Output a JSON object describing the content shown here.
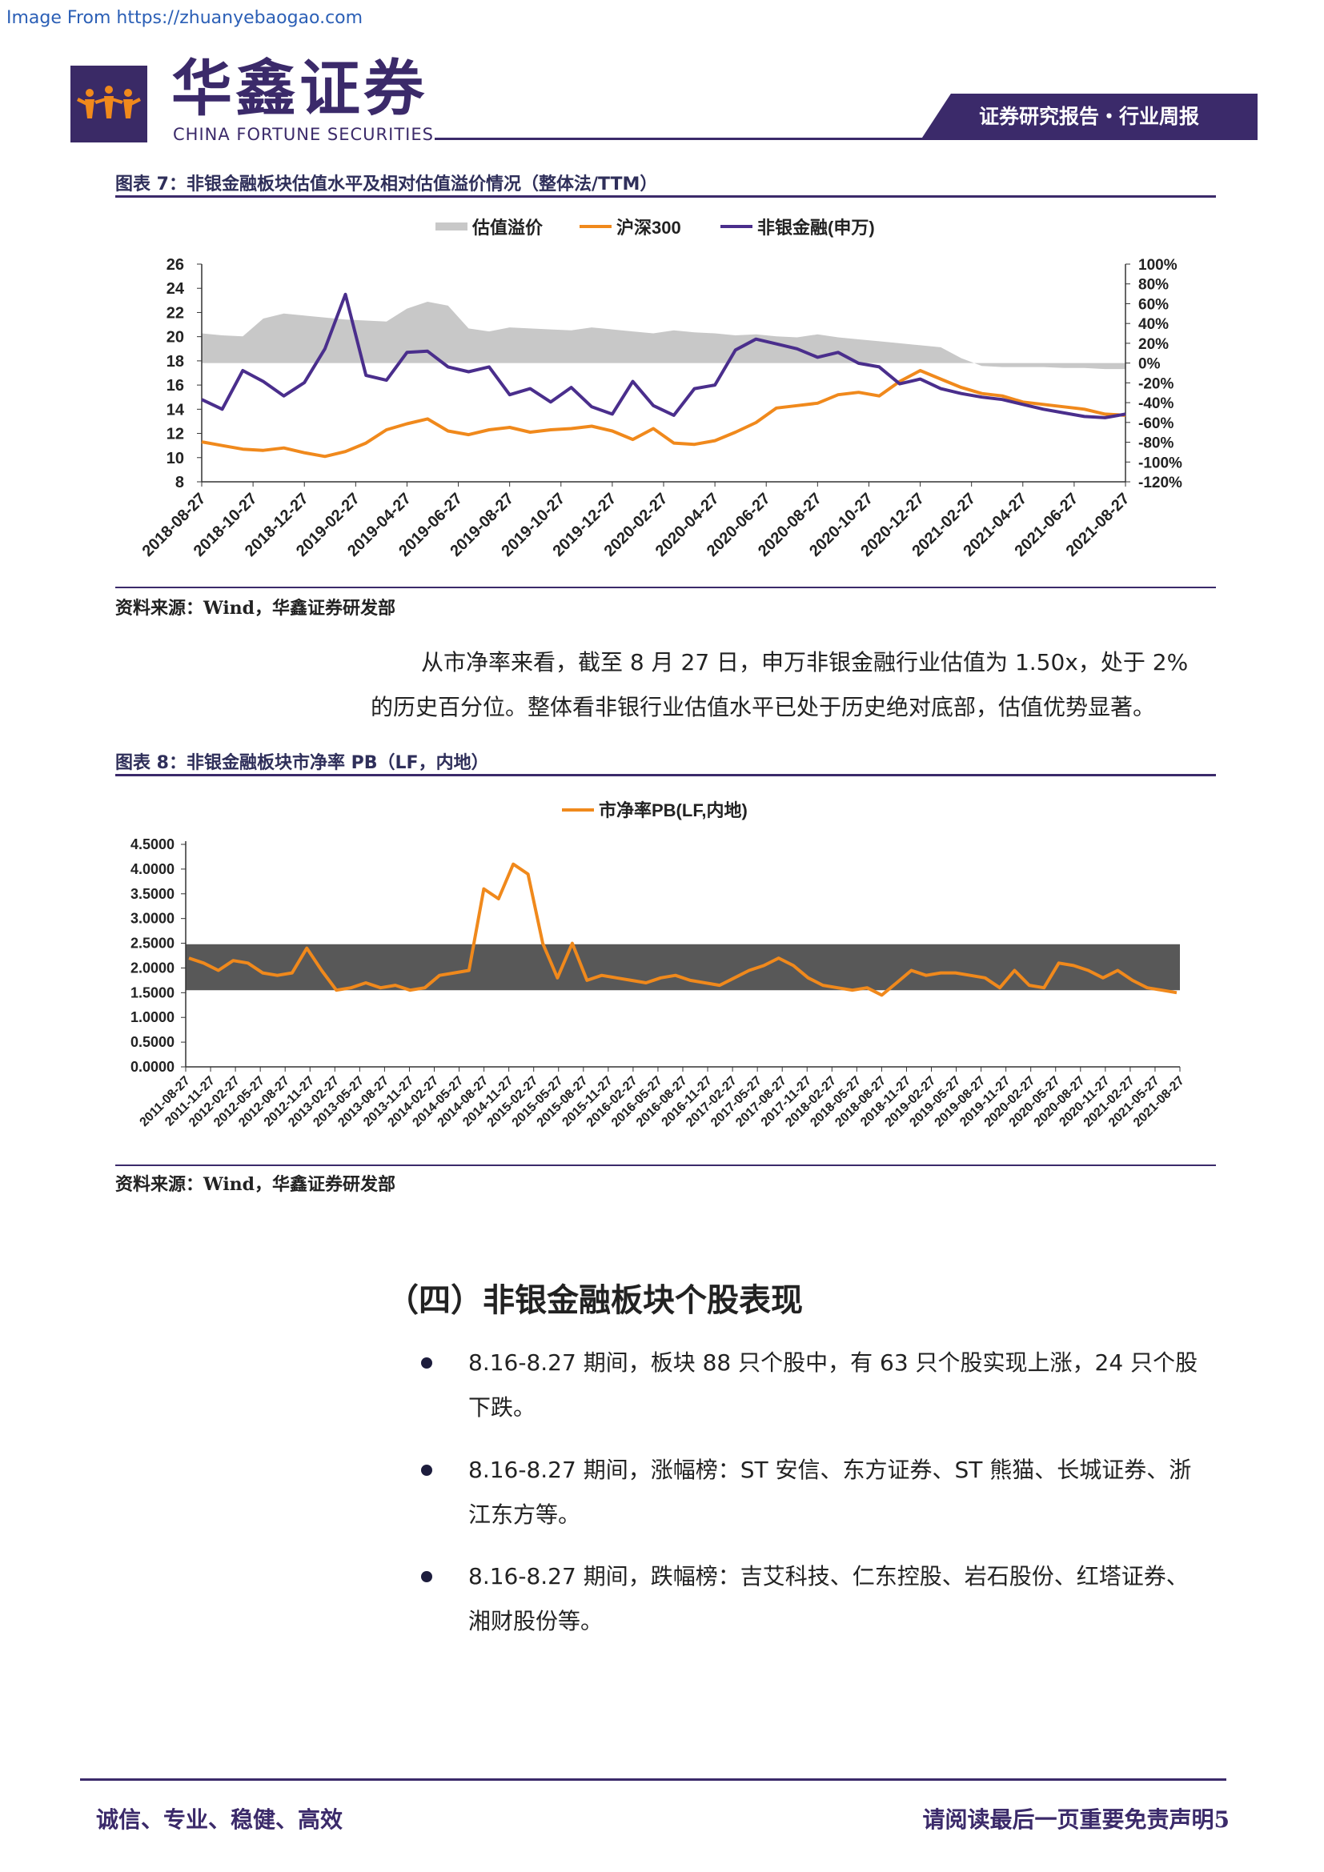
{
  "watermark": "Image From https://zhuanyebaogao.com",
  "header": {
    "logo_cn": "华鑫证券",
    "logo_en": "CHINA FORTUNE SECURITIES",
    "tag": "证券研究报告・行业周报"
  },
  "figure7": {
    "title": "图表 7：非银金融板块估值水平及相对估值溢价情况（整体法/TTM）",
    "source": "资料来源：Wind，华鑫证券研发部"
  },
  "paragraph1": {
    "line1": "从市净率来看，截至 8 月 27 日，申万非银金融行业估值为 1.50x，处于 2%",
    "line2": "的历史百分位。整体看非银行业估值水平已处于历史绝对底部，估值优势显著。"
  },
  "figure8": {
    "title": "图表 8：非银金融板块市净率 PB（LF，内地）",
    "source": "资料来源：Wind，华鑫证券研发部"
  },
  "section": {
    "heading": "（四）非银金融板块个股表现",
    "bullets": [
      {
        "line1": "8.16-8.27 期间，板块 88 只个股中，有 63 只个股实现上涨，24 只个股",
        "line2": "下跌。"
      },
      {
        "line1": "8.16-8.27 期间，涨幅榜：ST 安信、东方证券、ST 熊猫、长城证券、浙",
        "line2": "江东方等。"
      },
      {
        "line1": "8.16-8.27 期间，跌幅榜：吉艾科技、仁东控股、岩石股份、红塔证券、",
        "line2": "湘财股份等。"
      }
    ]
  },
  "footer": {
    "left": "诚信、专业、稳健、高效",
    "right": "请阅读最后一页重要免责声明5"
  },
  "chart_data": [
    {
      "type": "line",
      "legend": [
        "估值溢价",
        "沪深300",
        "非银金融(申万)"
      ],
      "colors": {
        "premium": "#c8c8c8",
        "hs300": "#f0891c",
        "nonbank": "#4a2e8c"
      },
      "left_axis": {
        "ticks": [
          "26",
          "24",
          "22",
          "20",
          "18",
          "16",
          "14",
          "12",
          "10",
          "8"
        ],
        "ylim": [
          8,
          26
        ]
      },
      "right_axis": {
        "ticks": [
          "100%",
          "80%",
          "60%",
          "40%",
          "20%",
          "0%",
          "-20%",
          "-40%",
          "-60%",
          "-80%",
          "-100%",
          "-120%"
        ],
        "ylim": [
          -120,
          100
        ]
      },
      "x_ticks": [
        "2018-08-27",
        "2018-10-27",
        "2018-12-27",
        "2019-02-27",
        "2019-04-27",
        "2019-06-27",
        "2019-08-27",
        "2019-10-27",
        "2019-12-27",
        "2020-02-27",
        "2020-04-27",
        "2020-06-27",
        "2020-08-27",
        "2020-10-27",
        "2020-12-27",
        "2021-02-27",
        "2021-04-27",
        "2021-06-27",
        "2021-08-27"
      ],
      "series": [
        {
          "name": "估值溢价",
          "values": [
            30,
            28,
            27,
            45,
            50,
            48,
            46,
            44,
            43,
            42,
            55,
            62,
            58,
            35,
            32,
            36,
            35,
            34,
            33,
            36,
            34,
            32,
            30,
            33,
            31,
            30,
            28,
            29,
            27,
            26,
            29,
            26,
            24,
            22,
            20,
            18,
            16,
            5,
            -3,
            -4,
            -4,
            -4,
            -5,
            -5,
            -6,
            -6
          ]
        },
        {
          "name": "沪深300",
          "values": [
            11.3,
            11.0,
            10.7,
            10.6,
            10.8,
            10.4,
            10.1,
            10.5,
            11.2,
            12.3,
            12.8,
            13.2,
            12.2,
            11.9,
            12.3,
            12.5,
            12.1,
            12.3,
            12.4,
            12.6,
            12.2,
            11.5,
            12.4,
            11.2,
            11.1,
            11.4,
            12.1,
            12.9,
            14.1,
            14.3,
            14.5,
            15.2,
            15.4,
            15.1,
            16.3,
            17.2,
            16.5,
            15.8,
            15.3,
            15.1,
            14.6,
            14.4,
            14.2,
            14.0,
            13.6,
            13.5
          ]
        },
        {
          "name": "非银金融(申万)",
          "values": [
            14.8,
            14.0,
            17.2,
            16.3,
            15.1,
            16.2,
            19.0,
            23.5,
            16.8,
            16.4,
            18.7,
            18.8,
            17.5,
            17.1,
            17.5,
            15.2,
            15.7,
            14.6,
            15.8,
            14.2,
            13.6,
            16.3,
            14.3,
            13.5,
            15.7,
            16.0,
            18.9,
            19.8,
            19.4,
            19.0,
            18.3,
            18.7,
            17.8,
            17.5,
            16.1,
            16.5,
            15.7,
            15.3,
            15.0,
            14.8,
            14.4,
            14.0,
            13.7,
            13.4,
            13.3,
            13.6
          ]
        }
      ]
    },
    {
      "type": "line",
      "legend": [
        "市净率PB(LF,内地)"
      ],
      "colors": {
        "pb": "#f0891c",
        "band": "#585858"
      },
      "ylim": [
        0,
        4.5
      ],
      "y_ticks": [
        "4.5000",
        "4.0000",
        "3.5000",
        "3.0000",
        "2.5000",
        "2.0000",
        "1.5000",
        "1.0000",
        "0.5000",
        "0.0000"
      ],
      "band": [
        1.55,
        2.48
      ],
      "x_ticks": [
        "2011-08-27",
        "2011-11-27",
        "2012-02-27",
        "2012-05-27",
        "2012-08-27",
        "2012-11-27",
        "2013-02-27",
        "2013-05-27",
        "2013-08-27",
        "2013-11-27",
        "2014-02-27",
        "2014-05-27",
        "2014-08-27",
        "2014-11-27",
        "2015-02-27",
        "2015-05-27",
        "2015-08-27",
        "2015-11-27",
        "2016-02-27",
        "2016-05-27",
        "2016-08-27",
        "2016-11-27",
        "2017-02-27",
        "2017-05-27",
        "2017-08-27",
        "2017-11-27",
        "2018-02-27",
        "2018-05-27",
        "2018-08-27",
        "2018-11-27",
        "2019-02-27",
        "2019-05-27",
        "2019-08-27",
        "2019-11-27",
        "2020-02-27",
        "2020-05-27",
        "2020-08-27",
        "2020-11-27",
        "2021-02-27",
        "2021-05-27",
        "2021-08-27"
      ],
      "series": [
        {
          "name": "市净率PB(LF,内地)",
          "values": [
            2.2,
            2.1,
            1.95,
            2.15,
            2.1,
            1.9,
            1.85,
            1.9,
            2.4,
            1.95,
            1.55,
            1.6,
            1.7,
            1.6,
            1.65,
            1.55,
            1.6,
            1.85,
            1.9,
            1.95,
            3.6,
            3.4,
            4.1,
            3.9,
            2.5,
            1.8,
            2.5,
            1.75,
            1.85,
            1.8,
            1.75,
            1.7,
            1.8,
            1.85,
            1.75,
            1.7,
            1.65,
            1.8,
            1.95,
            2.05,
            2.2,
            2.05,
            1.8,
            1.65,
            1.6,
            1.55,
            1.6,
            1.45,
            1.7,
            1.95,
            1.85,
            1.9,
            1.9,
            1.85,
            1.8,
            1.6,
            1.95,
            1.65,
            1.6,
            2.1,
            2.05,
            1.95,
            1.8,
            1.95,
            1.75,
            1.6,
            1.55,
            1.5
          ]
        }
      ]
    }
  ]
}
